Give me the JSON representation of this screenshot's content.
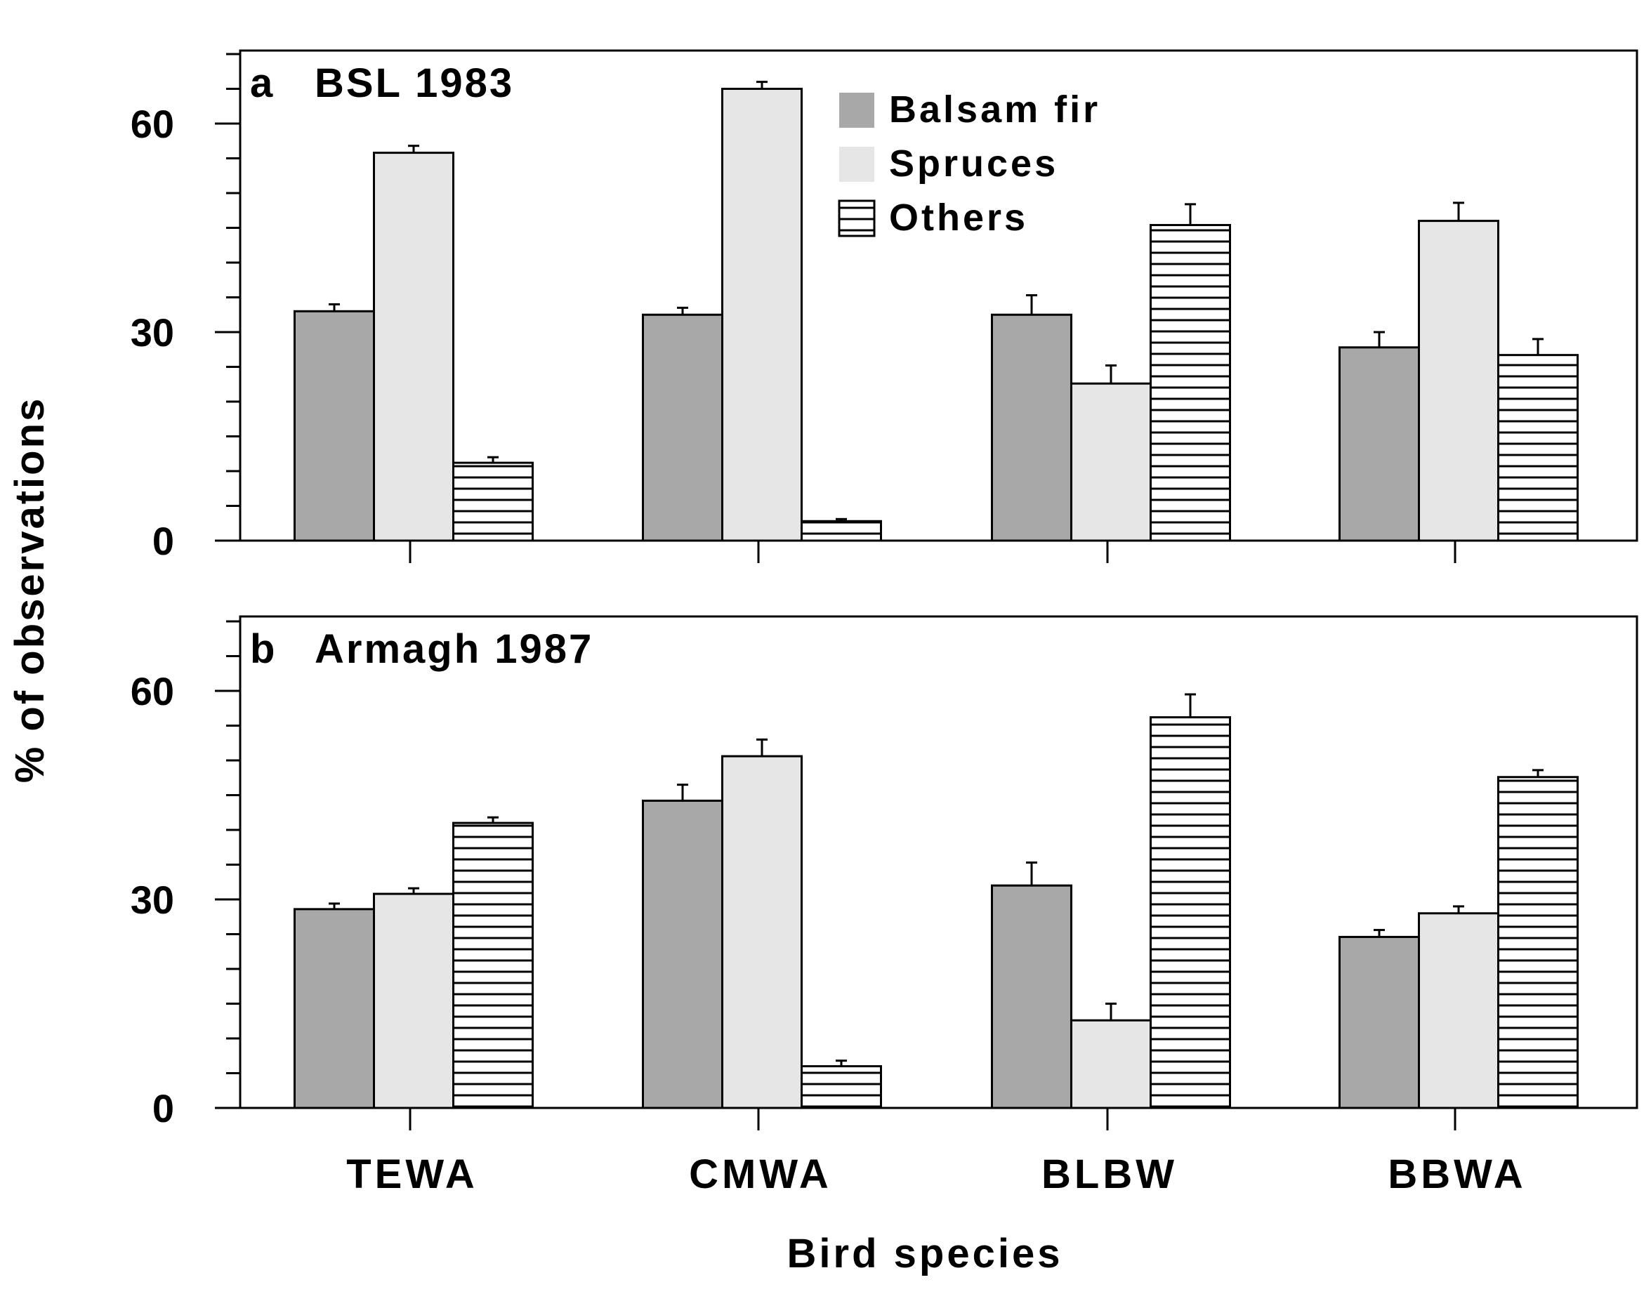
{
  "chart_data": {
    "type": "bar",
    "categories": [
      "TEWA",
      "CMWA",
      "BLBW",
      "BBWA"
    ],
    "xlabel": "Bird species",
    "ylabel": "% of observations",
    "ylim": [
      0,
      70
    ],
    "yticks": [
      0,
      30,
      60
    ],
    "legend": {
      "placement": "top-center",
      "entries": [
        "Balsam fir",
        "Spruces",
        "Others"
      ]
    },
    "colors": {
      "Balsam fir": "#a8a8a8",
      "Spruces": "#e6e6e6",
      "Others": "#ffffff"
    },
    "panels": [
      {
        "label": "a",
        "title": "BSL 1983",
        "series": [
          {
            "name": "Balsam fir",
            "values": [
              33,
              32.5,
              32.5,
              27.8
            ],
            "errors": [
              1.0,
              1.0,
              2.8,
              2.2
            ]
          },
          {
            "name": "Spruces",
            "values": [
              55.8,
              65,
              22.6,
              46
            ],
            "errors": [
              1.0,
              1.0,
              2.6,
              2.6
            ]
          },
          {
            "name": "Others",
            "values": [
              11.2,
              2.8,
              45.4,
              26.7
            ],
            "errors": [
              0.8,
              0.3,
              3.0,
              2.3
            ]
          }
        ]
      },
      {
        "label": "b",
        "title": "Armagh 1987",
        "series": [
          {
            "name": "Balsam fir",
            "values": [
              28.6,
              44.2,
              32,
              24.6
            ],
            "errors": [
              0.8,
              2.3,
              3.3,
              1.0
            ]
          },
          {
            "name": "Spruces",
            "values": [
              30.8,
              50.6,
              12.6,
              28
            ],
            "errors": [
              0.8,
              2.4,
              2.4,
              1.0
            ]
          },
          {
            "name": "Others",
            "values": [
              41,
              6,
              56.2,
              47.6
            ],
            "errors": [
              0.8,
              0.8,
              3.3,
              1.0
            ]
          }
        ]
      }
    ]
  }
}
